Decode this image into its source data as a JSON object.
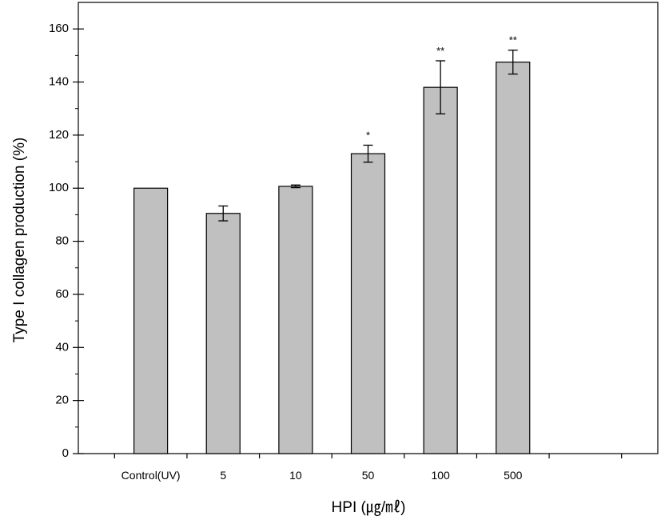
{
  "chart_data": {
    "type": "bar",
    "categories": [
      "Control(UV)",
      "5",
      "10",
      "50",
      "100",
      "500"
    ],
    "values": [
      100,
      90.5,
      100.7,
      113,
      138,
      147.5
    ],
    "errors": [
      0,
      2.8,
      0.5,
      3.2,
      10,
      4.5
    ],
    "significance": [
      "",
      "",
      "",
      "*",
      "**",
      "**"
    ],
    "xlabel": "HPI (㎍/㎖)",
    "ylabel": "Type I  collagen production (%)",
    "ylim": [
      0,
      170
    ],
    "yticks": [
      0,
      20,
      40,
      60,
      80,
      100,
      120,
      140,
      160
    ],
    "grid": false,
    "legend": "none",
    "bar_color": "#c0c0c0"
  }
}
